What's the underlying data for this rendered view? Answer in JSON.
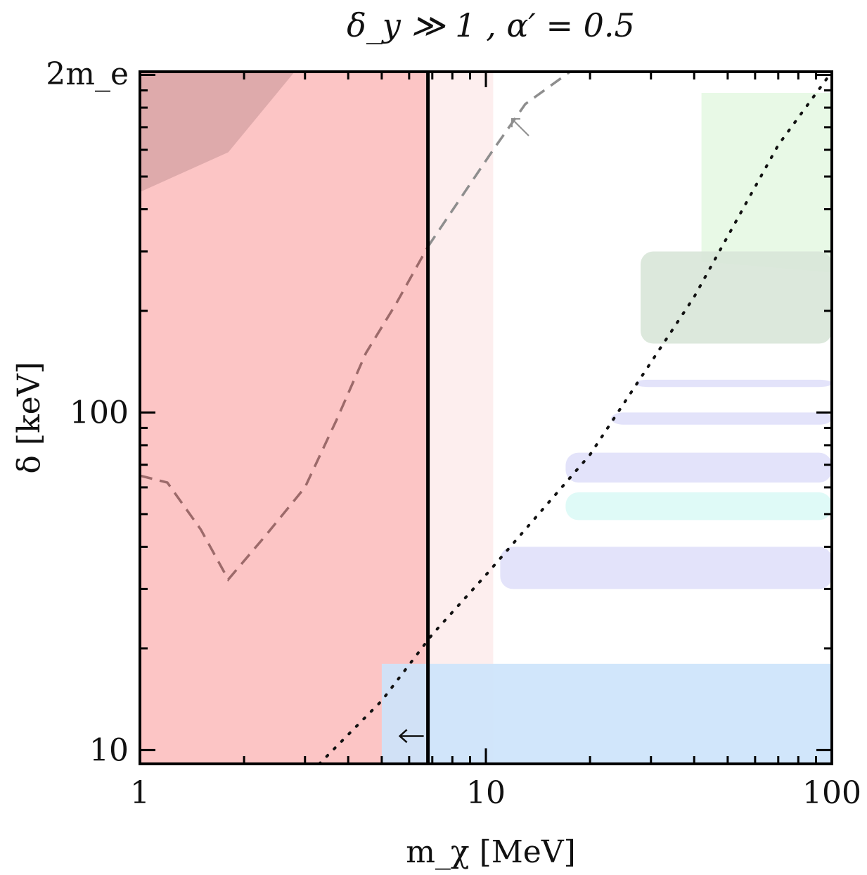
{
  "chart_data": {
    "type": "area",
    "title": "δ_y ≫ 1 , α′ = 0.5",
    "xlabel": "m_χ [MeV]",
    "ylabel": "δ [keV]",
    "x_scale": "log",
    "y_scale": "log",
    "xlim": [
      1,
      100
    ],
    "ylim": [
      9.1,
      1022
    ],
    "x_ticks": [
      {
        "value": 1,
        "label": "1"
      },
      {
        "value": 10,
        "label": "10"
      },
      {
        "value": 100,
        "label": "100"
      }
    ],
    "y_ticks": [
      {
        "value": 10,
        "label": "10"
      },
      {
        "value": 100,
        "label": "100"
      },
      {
        "value": 1022,
        "label": "2m_e"
      }
    ],
    "grid": false,
    "colors": {
      "excluded_red": "#fcc5c5",
      "excluded_light_red": "#fdeeee",
      "dark_region": "#deaaab",
      "dark_region_edge": "#b88283",
      "green_light": "#e8f9e6",
      "green": "#cce8cc",
      "green_grey": "#d8e6d8",
      "blue": "#cce3fb",
      "lavender": "#e0e0fa",
      "cyan": "#dcf9f6",
      "pink": "#e9cde3",
      "dashed_brown": "#9c6a6a",
      "dashed_grey": "#8e8e8e",
      "dotted": "#111111",
      "vertical_line": "#000000"
    },
    "regions": [
      {
        "kind": "excluded",
        "x": [
          1,
          6.8
        ],
        "y": [
          9.1,
          1022
        ],
        "color": "excluded_red"
      },
      {
        "kind": "excluded",
        "x": [
          6.8,
          10.5
        ],
        "y": [
          9.1,
          1022
        ],
        "color": "excluded_light_red"
      },
      {
        "kind": "excluded",
        "x": [
          1,
          2.8
        ],
        "y_lower": [
          [
            1,
            450
          ],
          [
            1.8,
            590
          ],
          [
            2.8,
            1022
          ]
        ],
        "color": "dark_region"
      },
      {
        "kind": "excluded",
        "x": [
          45,
          100
        ],
        "y_lower": [
          [
            42,
            280
          ],
          [
            100,
            260
          ]
        ],
        "color": "green_light"
      },
      {
        "kind": "excluded",
        "x": [
          28,
          100
        ],
        "y": [
          160,
          300
        ],
        "color": "green_grey"
      },
      {
        "kind": "excluded",
        "x": [
          5,
          100
        ],
        "y": [
          9.1,
          18
        ],
        "color": "blue"
      },
      {
        "kind": "excluded",
        "x": [
          11,
          100
        ],
        "y": [
          30,
          40
        ],
        "color": "lavender"
      },
      {
        "kind": "excluded",
        "x": [
          17,
          100
        ],
        "y": [
          48,
          58
        ],
        "color": "cyan"
      },
      {
        "kind": "excluded",
        "x": [
          17,
          100
        ],
        "y": [
          62,
          76
        ],
        "color": "lavender"
      },
      {
        "kind": "excluded",
        "x": [
          23,
          100
        ],
        "y": [
          92,
          100
        ],
        "color": "lavender"
      },
      {
        "kind": "excluded",
        "x": [
          27,
          100
        ],
        "y": [
          119,
          125
        ],
        "color": "lavender"
      }
    ],
    "series": [
      {
        "style": "dashed",
        "color": "dashed_brown",
        "x": [
          1.0,
          1.2,
          1.5,
          1.8,
          2.3,
          3.0,
          3.7,
          4.5,
          5.5,
          6.8
        ],
        "y": [
          65,
          62,
          45,
          32,
          43,
          60,
          95,
          150,
          210,
          310
        ]
      },
      {
        "style": "dashed",
        "color": "dashed_grey",
        "x": [
          6.8,
          10.5,
          13,
          17.5
        ],
        "y": [
          310,
          600,
          820,
          1022
        ]
      },
      {
        "style": "dotted",
        "color": "dotted",
        "x": [
          3.3,
          5.0,
          7.0,
          10,
          20,
          40,
          70,
          100
        ],
        "y": [
          9.1,
          14,
          22,
          33,
          75,
          220,
          620,
          1022
        ]
      },
      {
        "style": "solid",
        "color": "vertical_line",
        "x": [
          6.8,
          6.8
        ],
        "y": [
          9.1,
          1022
        ]
      }
    ],
    "annotations": [
      {
        "type": "arrow",
        "direction": "left",
        "x": 6.8,
        "y": 11
      },
      {
        "type": "arrow",
        "direction": "up-left",
        "x": 12,
        "y": 720
      }
    ]
  }
}
